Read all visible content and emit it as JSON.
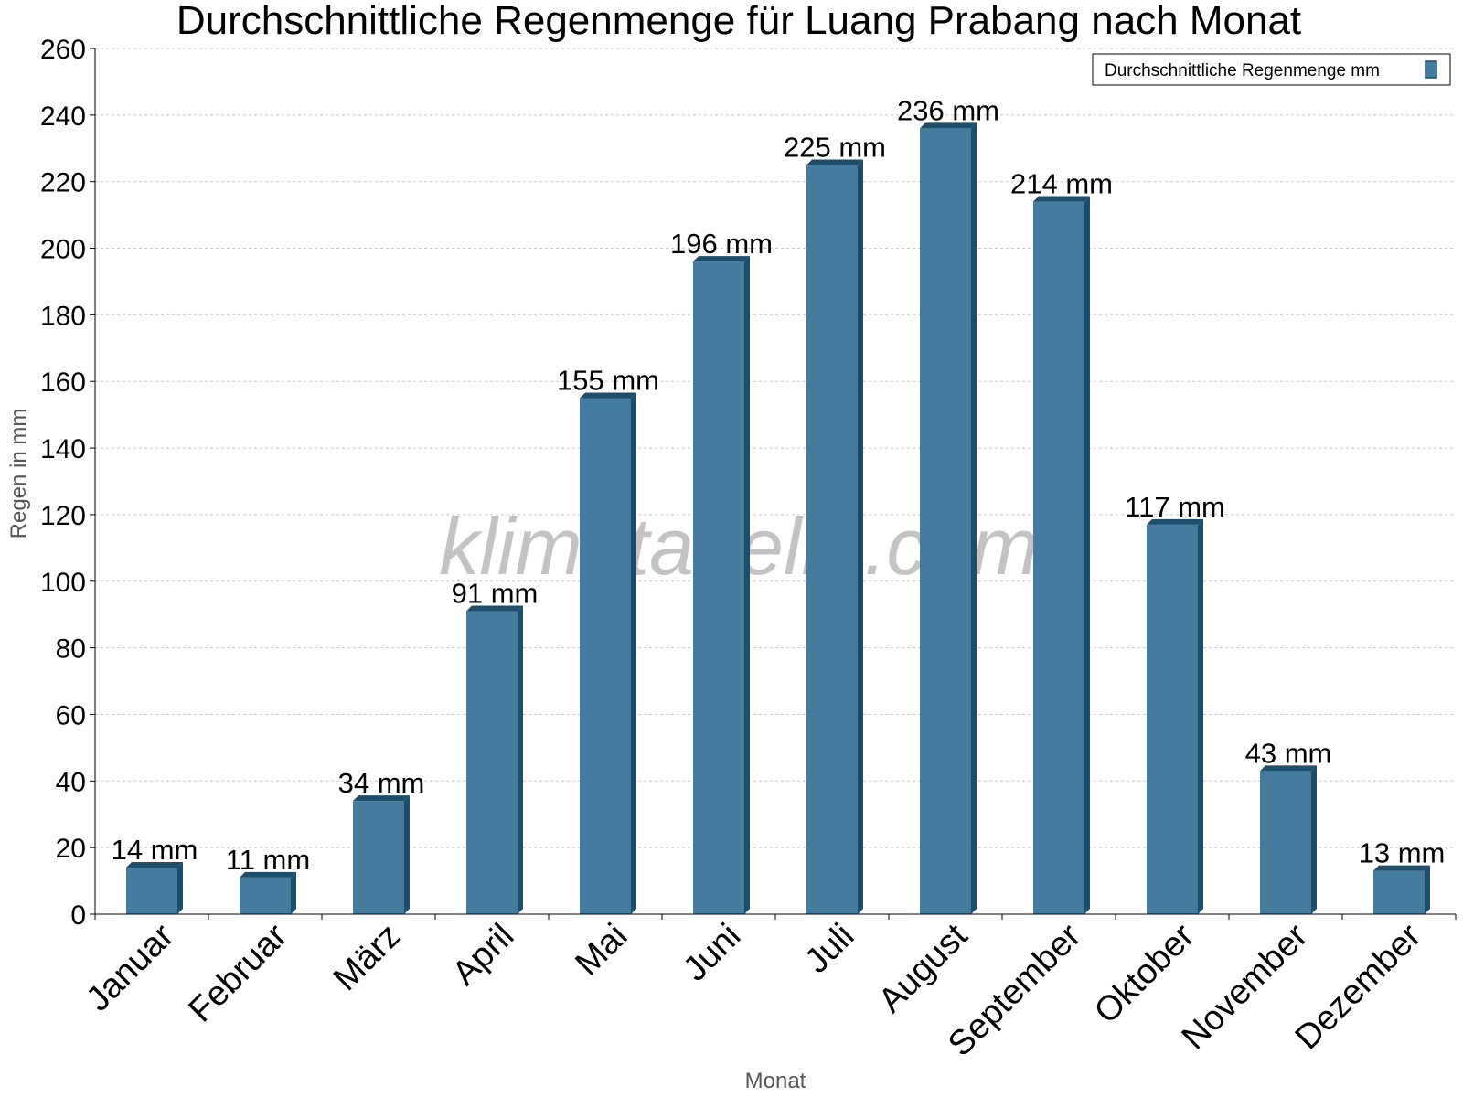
{
  "chart_data": {
    "type": "bar",
    "title": "Durchschnittliche Regenmenge für Luang Prabang nach Monat",
    "xlabel": "Monat",
    "ylabel": "Regen in mm",
    "ylim": [
      0,
      260
    ],
    "yticks": [
      0,
      20,
      40,
      60,
      80,
      100,
      120,
      140,
      160,
      180,
      200,
      220,
      240,
      260
    ],
    "categories": [
      "Januar",
      "Februar",
      "März",
      "April",
      "Mai",
      "Juni",
      "Juli",
      "August",
      "September",
      "Oktober",
      "November",
      "Dezember"
    ],
    "series": [
      {
        "name": "Durchschnittliche Regenmenge mm",
        "values": [
          14,
          11,
          34,
          91,
          155,
          196,
          225,
          236,
          214,
          117,
          43,
          13
        ],
        "labels": [
          "14 mm",
          "11 mm",
          "34 mm",
          "91 mm",
          "155 mm",
          "196 mm",
          "225 mm",
          "236 mm",
          "214 mm",
          "117 mm",
          "43 mm",
          "13 mm"
        ],
        "color": "#457b9d",
        "edge_color": "#1d4e6b"
      }
    ],
    "grid": true,
    "legend_position": "top-right"
  },
  "watermark": "klimatabelle.com"
}
